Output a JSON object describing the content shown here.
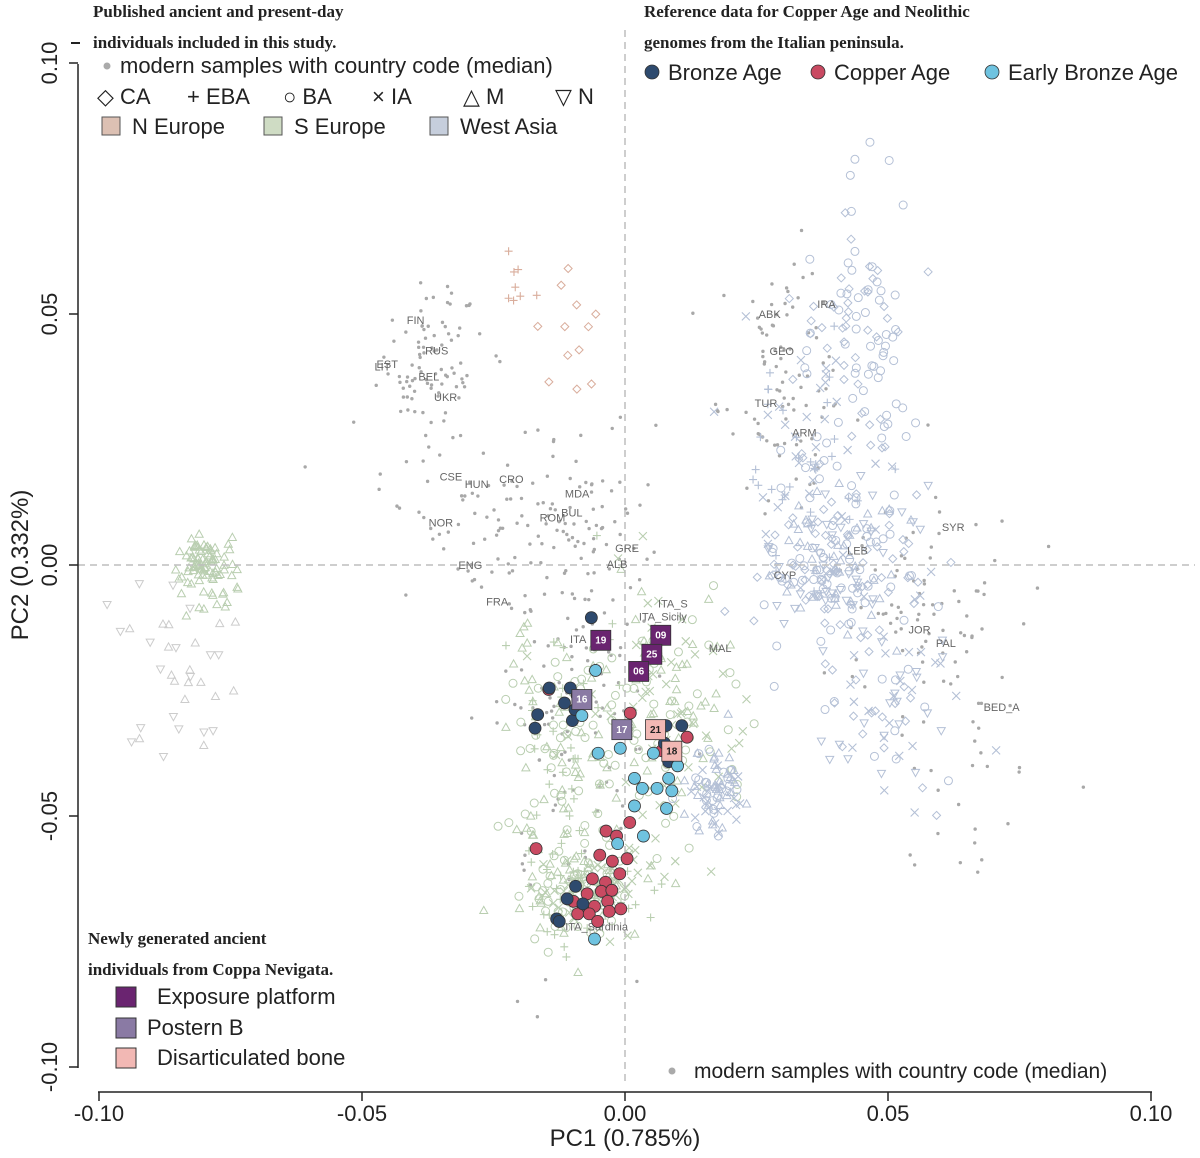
{
  "chart_data": {
    "type": "scatter",
    "xlabel": "PC1 (0.785%)",
    "ylabel": "PC2 (0.332%)",
    "xlim": [
      -0.1,
      0.1
    ],
    "ylim": [
      -0.1,
      0.1
    ],
    "x_ticks": [
      "-0.10",
      "-0.05",
      "0.00",
      "0.05",
      "0.10"
    ],
    "y_ticks": [
      "-0.10",
      "-0.05",
      "0.00",
      "0.05",
      "0.10"
    ],
    "grid": false,
    "reference_lines": {
      "x": 0,
      "y": 0
    },
    "legend_published": {
      "title_line1": "Published ancient and present-day",
      "title_line2": "individuals included in this study.",
      "modern_label": "modern samples with country code (median)",
      "period_shapes": [
        {
          "symbol": "◇",
          "label": "CA"
        },
        {
          "symbol": "+",
          "label": "EBA"
        },
        {
          "symbol": "○",
          "label": "BA"
        },
        {
          "symbol": "×",
          "label": "IA"
        },
        {
          "symbol": "△",
          "label": "M"
        },
        {
          "symbol": "▽",
          "label": "N"
        }
      ],
      "regions": [
        {
          "label": "N Europe",
          "color": "#dcc0b3"
        },
        {
          "label": "S Europe",
          "color": "#cfdcc4"
        },
        {
          "label": "West Asia",
          "color": "#c6cedc"
        }
      ]
    },
    "legend_reference": {
      "title_line1": "Reference data for Copper Age and Neolithic",
      "title_line2": "genomes from the Italian peninsula.",
      "groups": [
        {
          "label": "Bronze Age",
          "color": "#2e4a6e"
        },
        {
          "label": "Copper Age",
          "color": "#c94a62"
        },
        {
          "label": "Early Bronze Age",
          "color": "#6fc3e0"
        }
      ]
    },
    "legend_new": {
      "title_line1": "Newly generated ancient",
      "title_line2": "individuals from Coppa Nevigata.",
      "contexts": [
        {
          "label": "Exposure platform",
          "color": "#6a2470"
        },
        {
          "label": "Postern B",
          "color": "#8a7aa4"
        },
        {
          "label": "Disarticulated bone",
          "color": "#f2b8b4"
        }
      ]
    },
    "bottom_legend_label": "modern samples with country code (median)",
    "country_labels": [
      {
        "code": "FIN",
        "x": -0.0398,
        "y": 0.0486
      },
      {
        "code": "RUS",
        "x": -0.0358,
        "y": 0.0425
      },
      {
        "code": "EST",
        "x": -0.0452,
        "y": 0.0398
      },
      {
        "code": "LIT",
        "x": -0.0461,
        "y": 0.0393
      },
      {
        "code": "BEL",
        "x": -0.0373,
        "y": 0.0373
      },
      {
        "code": "UKR",
        "x": -0.0341,
        "y": 0.0332
      },
      {
        "code": "CSE",
        "x": -0.0331,
        "y": 0.0174
      },
      {
        "code": "HUN",
        "x": -0.0282,
        "y": 0.0159
      },
      {
        "code": "CRO",
        "x": -0.0216,
        "y": 0.0169
      },
      {
        "code": "MDA",
        "x": -0.0091,
        "y": 0.014
      },
      {
        "code": "BUL",
        "x": -0.0101,
        "y": 0.0102
      },
      {
        "code": "ROM",
        "x": -0.0138,
        "y": 0.0092
      },
      {
        "code": "NOR",
        "x": -0.035,
        "y": 0.0082
      },
      {
        "code": "GRE",
        "x": 0.0004,
        "y": 0.0032
      },
      {
        "code": "ALB",
        "x": -0.0015,
        "y": 0.0
      },
      {
        "code": "ENG",
        "x": -0.0294,
        "y": -0.0002
      },
      {
        "code": "FRA",
        "x": -0.0243,
        "y": -0.0075
      },
      {
        "code": "ITA_S",
        "x": 0.0091,
        "y": -0.0079
      },
      {
        "code": "ITA_Sicily",
        "x": 0.0072,
        "y": -0.0105
      },
      {
        "code": "ITA",
        "x": -0.0089,
        "y": -0.015
      },
      {
        "code": "MAL",
        "x": 0.0181,
        "y": -0.0168
      },
      {
        "code": "ITA_Sardinia",
        "x": -0.0054,
        "y": -0.0722
      },
      {
        "code": "ABK",
        "x": 0.0275,
        "y": 0.0498
      },
      {
        "code": "IRA",
        "x": 0.0383,
        "y": 0.0518
      },
      {
        "code": "GEO",
        "x": 0.0298,
        "y": 0.0424
      },
      {
        "code": "TUR",
        "x": 0.0268,
        "y": 0.0321
      },
      {
        "code": "ARM",
        "x": 0.0341,
        "y": 0.0262
      },
      {
        "code": "SYR",
        "x": 0.0624,
        "y": 0.0074
      },
      {
        "code": "LEB",
        "x": 0.0442,
        "y": 0.0027
      },
      {
        "code": "CYP",
        "x": 0.0304,
        "y": -0.0022
      },
      {
        "code": "JOR",
        "x": 0.056,
        "y": -0.0131
      },
      {
        "code": "PAL",
        "x": 0.061,
        "y": -0.0158
      },
      {
        "code": "BED_A",
        "x": 0.0716,
        "y": -0.0285
      }
    ],
    "coppa_nevigata_samples": [
      {
        "label": "19",
        "context": "Exposure platform",
        "x": -0.0046,
        "y": -0.015
      },
      {
        "label": "09",
        "context": "Exposure platform",
        "x": 0.0068,
        "y": -0.014
      },
      {
        "label": "25",
        "context": "Exposure platform",
        "x": 0.0051,
        "y": -0.0178
      },
      {
        "label": "06",
        "context": "Exposure platform",
        "x": 0.0026,
        "y": -0.0212
      },
      {
        "label": "16",
        "context": "Postern B",
        "x": -0.0082,
        "y": -0.0268
      },
      {
        "label": "17",
        "context": "Postern B",
        "x": -0.0006,
        "y": -0.0328
      },
      {
        "label": "21",
        "context": "Disarticulated bone",
        "x": 0.0058,
        "y": -0.0328
      },
      {
        "label": "18",
        "context": "Disarticulated bone",
        "x": 0.0089,
        "y": -0.0371
      }
    ],
    "bronze_age_points": [
      [
        -0.0064,
        -0.0105
      ],
      [
        -0.0144,
        -0.0245
      ],
      [
        -0.0104,
        -0.0245
      ],
      [
        -0.0091,
        -0.026
      ],
      [
        -0.0115,
        -0.0275
      ],
      [
        -0.0166,
        -0.0298
      ],
      [
        -0.0171,
        -0.0325
      ],
      [
        -0.01,
        -0.031
      ],
      [
        -0.0095,
        -0.0288
      ],
      [
        0.0078,
        -0.032
      ],
      [
        0.0108,
        -0.032
      ],
      [
        0.0075,
        -0.0355
      ],
      [
        0.0083,
        -0.0392
      ],
      [
        -0.0094,
        -0.064
      ],
      [
        -0.011,
        -0.0665
      ],
      [
        -0.008,
        -0.0675
      ],
      [
        -0.013,
        -0.0705
      ],
      [
        -0.0125,
        -0.071
      ]
    ],
    "copper_age_points": [
      [
        -0.0145,
        -0.0248
      ],
      [
        0.001,
        -0.0295
      ],
      [
        0.0118,
        -0.0343
      ],
      [
        0.007,
        -0.037
      ],
      [
        -0.0036,
        -0.053
      ],
      [
        0.0009,
        -0.0513
      ],
      [
        -0.0016,
        -0.054
      ],
      [
        -0.0169,
        -0.0565
      ],
      [
        -0.0048,
        -0.0578
      ],
      [
        -0.0024,
        -0.059
      ],
      [
        0.0004,
        -0.0585
      ],
      [
        -0.0062,
        -0.0625
      ],
      [
        -0.0037,
        -0.0632
      ],
      [
        -0.001,
        -0.0615
      ],
      [
        -0.0072,
        -0.0655
      ],
      [
        -0.0045,
        -0.065
      ],
      [
        -0.0025,
        -0.0648
      ],
      [
        -0.008,
        -0.0685
      ],
      [
        -0.0058,
        -0.068
      ],
      [
        -0.0033,
        -0.067
      ],
      [
        -0.009,
        -0.0695
      ],
      [
        -0.0068,
        -0.0695
      ],
      [
        -0.0052,
        -0.071
      ],
      [
        -0.003,
        -0.069
      ],
      [
        -0.0008,
        -0.0685
      ],
      [
        -0.0098,
        -0.067
      ]
    ],
    "early_bronze_age_points": [
      [
        -0.0056,
        -0.021
      ],
      [
        -0.0082,
        -0.03
      ],
      [
        -0.0009,
        -0.0365
      ],
      [
        -0.0051,
        -0.0375
      ],
      [
        0.0054,
        -0.0375
      ],
      [
        0.01,
        -0.04
      ],
      [
        0.0018,
        -0.0425
      ],
      [
        0.0083,
        -0.0425
      ],
      [
        0.0033,
        -0.0445
      ],
      [
        0.0089,
        -0.045
      ],
      [
        0.0061,
        -0.0445
      ],
      [
        0.0079,
        -0.0485
      ],
      [
        0.0018,
        -0.048
      ],
      [
        0.0035,
        -0.054
      ],
      [
        -0.0014,
        -0.0555
      ],
      [
        -0.0058,
        -0.0745
      ]
    ]
  }
}
